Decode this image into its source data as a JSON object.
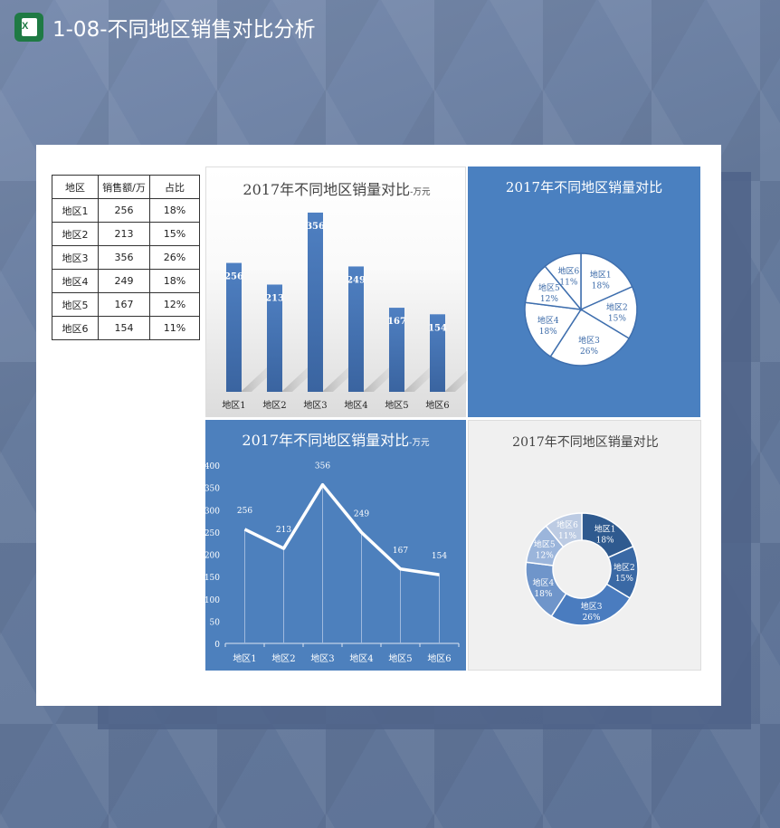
{
  "header": {
    "title": "1-08-不同地区销售对比分析",
    "app_icon": "excel-icon"
  },
  "table": {
    "headers": [
      "地区",
      "销售额/万",
      "占比"
    ],
    "rows": [
      [
        "地区1",
        "256",
        "18%"
      ],
      [
        "地区2",
        "213",
        "15%"
      ],
      [
        "地区3",
        "356",
        "26%"
      ],
      [
        "地区4",
        "249",
        "18%"
      ],
      [
        "地区5",
        "167",
        "12%"
      ],
      [
        "地区6",
        "154",
        "11%"
      ]
    ]
  },
  "chart_data": [
    {
      "type": "bar",
      "title": "2017年不同地区销量对比",
      "title_suffix": "-万元",
      "categories": [
        "地区1",
        "地区2",
        "地区3",
        "地区4",
        "地区5",
        "地区6"
      ],
      "values": [
        256,
        213,
        356,
        249,
        167,
        154
      ],
      "ylim": [
        0,
        400
      ],
      "color": "#4472b4",
      "grid": false
    },
    {
      "type": "pie",
      "title": "2017年不同地区销量对比",
      "categories": [
        "地区1",
        "地区2",
        "地区3",
        "地区4",
        "地区5",
        "地区6"
      ],
      "values": [
        256,
        213,
        356,
        249,
        167,
        154
      ],
      "percent_labels": [
        "18%",
        "15%",
        "26%",
        "18%",
        "12%",
        "11%"
      ],
      "background": "#4a80c0"
    },
    {
      "type": "line",
      "title": "2017年不同地区销量对比",
      "title_suffix": "-万元",
      "categories": [
        "地区1",
        "地区2",
        "地区3",
        "地区4",
        "地区5",
        "地区6"
      ],
      "values": [
        256,
        213,
        356,
        249,
        167,
        154
      ],
      "ylim": [
        0,
        400
      ],
      "yticks": [
        "0",
        "50",
        "100",
        "150",
        "200",
        "250",
        "300",
        "350",
        "400"
      ],
      "background": "#4d80bd"
    },
    {
      "type": "pie",
      "variant": "donut",
      "title": "2017年不同地区销量对比",
      "categories": [
        "地区1",
        "地区2",
        "地区3",
        "地区4",
        "地区5",
        "地区6"
      ],
      "values": [
        256,
        213,
        356,
        249,
        167,
        154
      ],
      "percent_labels": [
        "18%",
        "15%",
        "26%",
        "18%",
        "12%",
        "11%"
      ],
      "colors": [
        "#2f5a8f",
        "#3a69a5",
        "#4a7cbf",
        "#6f95ca",
        "#9bb5db",
        "#bccbe3"
      ]
    }
  ]
}
